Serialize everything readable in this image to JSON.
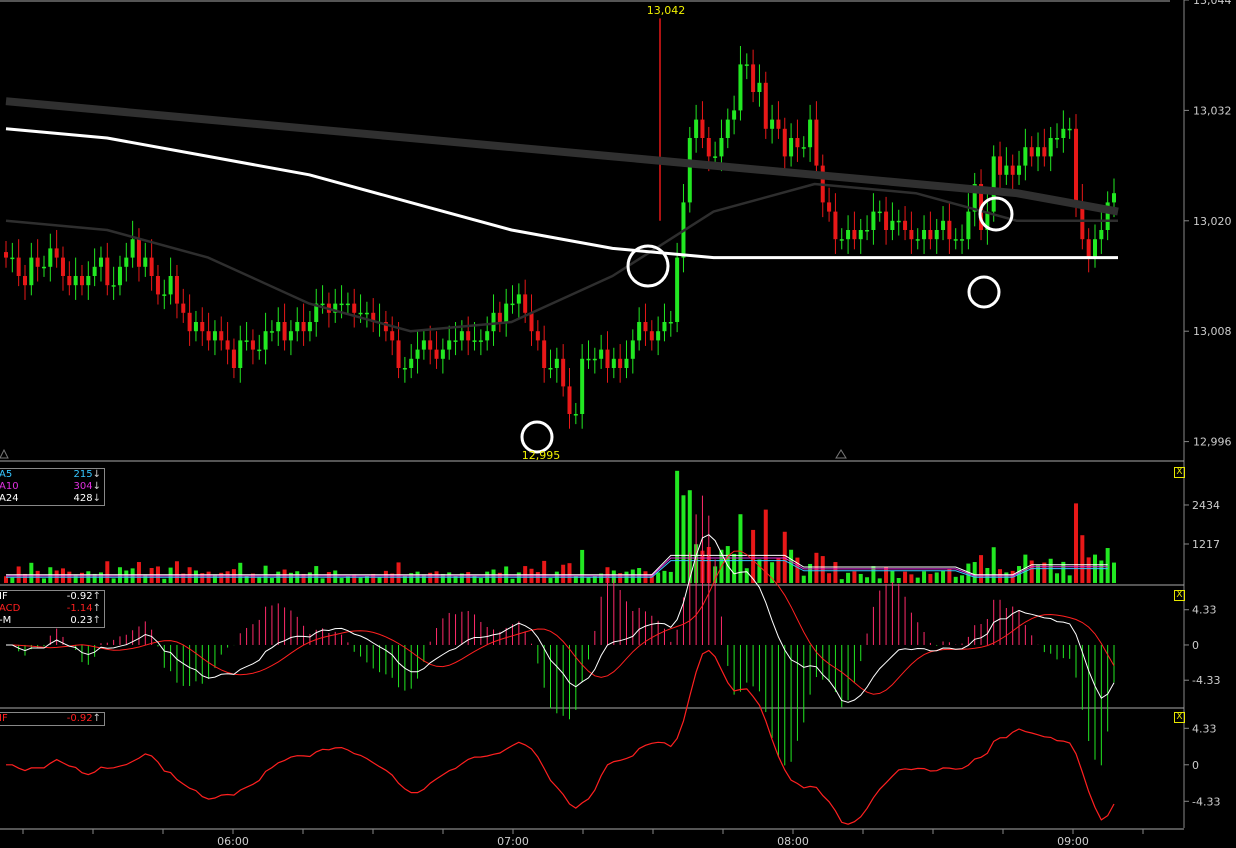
{
  "chart_data": [
    {
      "panel": "price",
      "type": "candlestick",
      "y_ticks": [
        "13,044",
        "13,032",
        "13,020",
        "13,008",
        "12,996"
      ],
      "ylim": [
        12994,
        13044
      ],
      "x_ticks": [
        "06:00",
        "07:00",
        "08:00",
        "09:00"
      ],
      "high_label": "13,042",
      "low_label": "12,995",
      "colors": {
        "up": "#22e822",
        "down": "#e81818",
        "ma_white": "#ffffff",
        "ma_dark": "#2e2e2e",
        "ma_thick": "#303030",
        "label": "#f0f000"
      },
      "series": [
        {
          "name": "close",
          "values": [
            13016,
            13016,
            13014,
            13013,
            13016,
            13015,
            13015,
            13017,
            13016,
            13014,
            13013,
            13014,
            13013,
            13014,
            13015,
            13016,
            13013,
            13013,
            13015,
            13016,
            13018,
            13015,
            13016,
            13014,
            13012,
            13012,
            13014,
            13011,
            13010,
            13008,
            13009,
            13008,
            13007,
            13008,
            13007,
            13006,
            13004,
            13007,
            13007,
            13006,
            13006,
            13008,
            13008,
            13009,
            13007,
            13008,
            13009,
            13008,
            13009,
            13011,
            13011,
            13010,
            13011,
            13011,
            13011,
            13010,
            13010,
            13010,
            13009,
            13009,
            13008,
            13007,
            13004,
            13004,
            13005,
            13006,
            13007,
            13006,
            13005,
            13006,
            13007,
            13007,
            13008,
            13007,
            13007,
            13007,
            13008,
            13010,
            13009,
            13011,
            13011,
            13012,
            13010,
            13008,
            13007,
            13004,
            13004,
            13005,
            13002,
            12999,
            12999,
            13005,
            13005,
            13005,
            13006,
            13004,
            13005,
            13004,
            13005,
            13007,
            13009,
            13008,
            13007,
            13008,
            13009,
            13009,
            13016,
            13022,
            13029,
            13031,
            13029,
            13027,
            13027,
            13029,
            13031,
            13032,
            13037,
            13037,
            13034,
            13035,
            13030,
            13031,
            13030,
            13027,
            13029,
            13028,
            13028,
            13031,
            13026,
            13022,
            13021,
            13018,
            13018,
            13019,
            13018,
            13019,
            13019,
            13021,
            13021,
            13019,
            13020,
            13020,
            13019,
            13018,
            13018,
            13019,
            13018,
            13019,
            13020,
            13018,
            13018,
            13018,
            13021,
            13024,
            13019,
            13021,
            13027,
            13025,
            13026,
            13025,
            13026,
            13028,
            13027,
            13028,
            13027,
            13029,
            13029,
            13030,
            13030,
            13022,
            13018,
            13016,
            13018,
            13019,
            13022,
            13023
          ]
        },
        {
          "name": "ma_white",
          "values": [
            13030,
            13029,
            13027,
            13025,
            13022,
            13019,
            13017,
            13016,
            13016,
            13016,
            13016,
            13016
          ]
        },
        {
          "name": "ma_dark",
          "values": [
            13020,
            13019,
            13016,
            13011,
            13008,
            13009,
            13014,
            13021,
            13024,
            13023,
            13020,
            13020
          ]
        },
        {
          "name": "ma_thick",
          "values": [
            13033,
            13032,
            13031,
            13030,
            13029,
            13028,
            13027,
            13026,
            13025,
            13024,
            13023,
            13021
          ]
        }
      ]
    },
    {
      "panel": "volume",
      "type": "bar",
      "y_ticks": [
        "2434",
        "1217"
      ],
      "ylim": [
        0,
        3650
      ],
      "legend": [
        {
          "label": "A5",
          "value": "215",
          "arrow": "↓",
          "color": "#35c6ff"
        },
        {
          "label": "A10",
          "value": "304",
          "arrow": "↓",
          "color": "#e030e0"
        },
        {
          "label": "A24",
          "value": "428",
          "arrow": "↓",
          "color": "#ffffff"
        }
      ],
      "close_label": "X"
    },
    {
      "panel": "macd",
      "type": "line",
      "y_ticks": [
        "4.33",
        "0",
        "-4.33"
      ],
      "ylim": [
        -7.5,
        7.0
      ],
      "legend": [
        {
          "label": "IF",
          "value": "-0.92",
          "arrow": "↑",
          "color": "#ffffff"
        },
        {
          "label": "ACD",
          "value": "-1.14",
          "arrow": "↑",
          "color": "#ff2020"
        },
        {
          "label": "-M",
          "value": "0.23",
          "arrow": "↑",
          "color": "#ffffff"
        }
      ],
      "close_label": "X"
    },
    {
      "panel": "dif",
      "type": "line",
      "y_ticks": [
        "4.33",
        "0",
        "-4.33"
      ],
      "ylim": [
        -7.5,
        6.5
      ],
      "legend": [
        {
          "label": "IF",
          "value": "-0.92",
          "arrow": "↑",
          "color": "#ff2020"
        }
      ],
      "close_label": "X"
    }
  ]
}
